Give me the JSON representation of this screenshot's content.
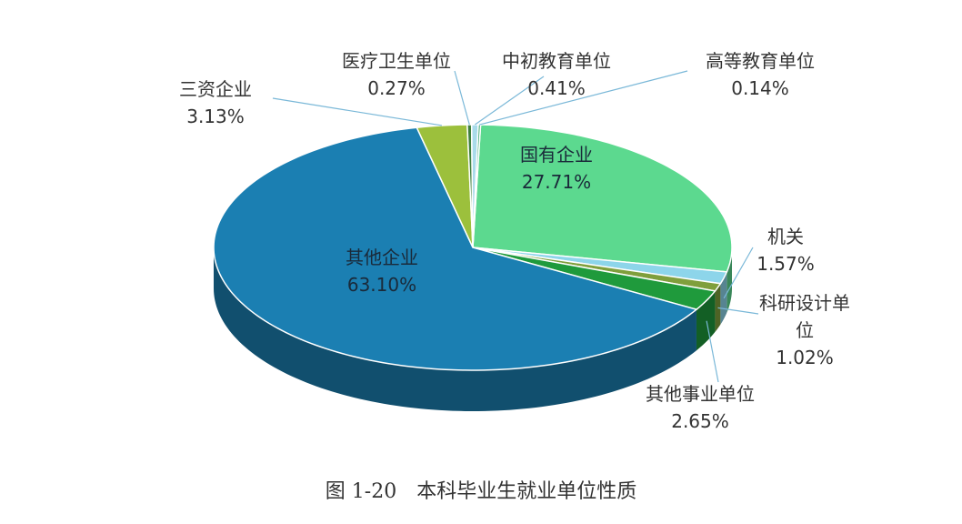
{
  "chart_data": {
    "type": "pie",
    "title": "图 1-20　本科毕业生就业单位性质",
    "categories": [
      "国有企业",
      "机关",
      "科研设计单位",
      "其他事业单位",
      "其他企业",
      "三资企业",
      "医疗卫生单位",
      "中初教育单位",
      "高等教育单位"
    ],
    "values": [
      27.71,
      1.57,
      1.02,
      2.65,
      63.1,
      3.13,
      0.27,
      0.41,
      0.14
    ],
    "value_labels": [
      "27.71%",
      "1.57%",
      "1.02%",
      "2.65%",
      "63.10%",
      "3.13%",
      "0.27%",
      "0.41%",
      "0.14%"
    ],
    "colors": [
      "#5cd98f",
      "#8dd5ea",
      "#7f9f3c",
      "#1f9a3c",
      "#1b7fb2",
      "#9cc03c",
      "#3f7f3c",
      "#a9dbea",
      "#2aa064"
    ]
  }
}
